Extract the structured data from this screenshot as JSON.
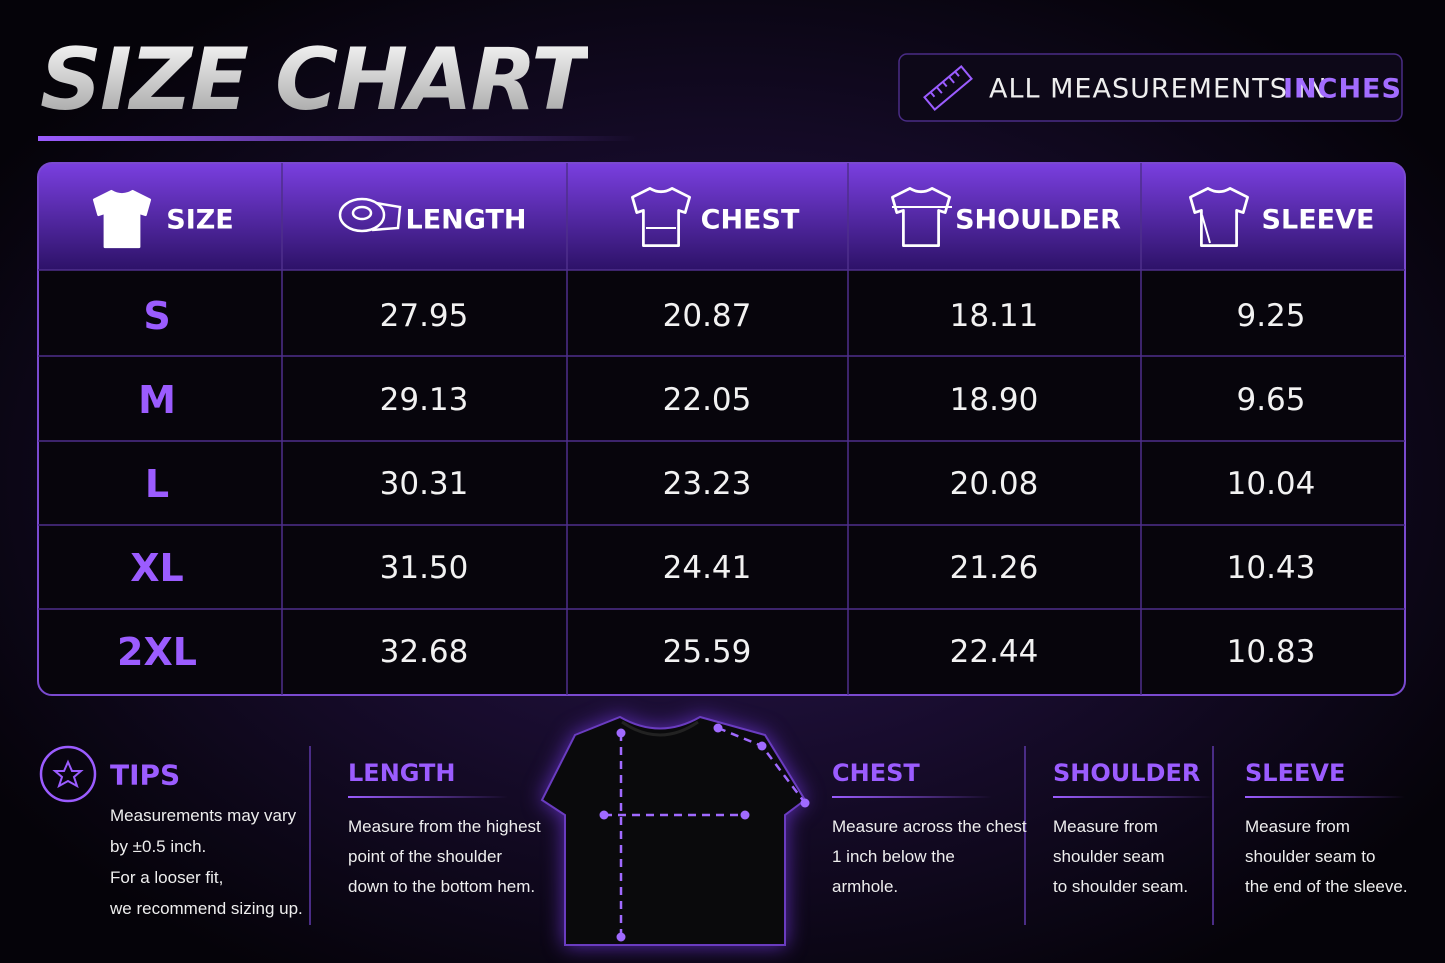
{
  "header": {
    "title": "SIZE CHART",
    "units_label": "ALL MEASUREMENTS IN",
    "units": "INCHES"
  },
  "table": {
    "columns": [
      "SIZE",
      "LENGTH",
      "CHEST",
      "SHOULDER",
      "SLEEVE"
    ],
    "rows": [
      [
        "S",
        "27.95",
        "20.87",
        "18.11",
        "9.25"
      ],
      [
        "M",
        "29.13",
        "22.05",
        "18.90",
        "9.65"
      ],
      [
        "L",
        "30.31",
        "23.23",
        "20.08",
        "10.04"
      ],
      [
        "XL",
        "31.50",
        "24.41",
        "21.26",
        "10.43"
      ],
      [
        "2XL",
        "32.68",
        "25.59",
        "22.44",
        "10.83"
      ]
    ]
  },
  "tips": {
    "title": "TIPS",
    "lines": [
      "Measurements may vary",
      "by ±0.5 inch.",
      "For a looser fit,",
      "we recommend sizing up."
    ]
  },
  "guides": [
    {
      "title": "LENGTH",
      "lines": [
        "Measure from the highest",
        "point of the shoulder",
        "down to the bottom hem."
      ]
    },
    {
      "title": "CHEST",
      "lines": [
        "Measure across the chest",
        "1 inch below the",
        "armhole."
      ]
    },
    {
      "title": "SHOULDER",
      "lines": [
        "Measure from",
        "shoulder seam",
        "to shoulder seam."
      ]
    },
    {
      "title": "SLEEVE",
      "lines": [
        "Measure from",
        "shoulder seam to",
        "the end of the sleeve."
      ]
    }
  ]
}
